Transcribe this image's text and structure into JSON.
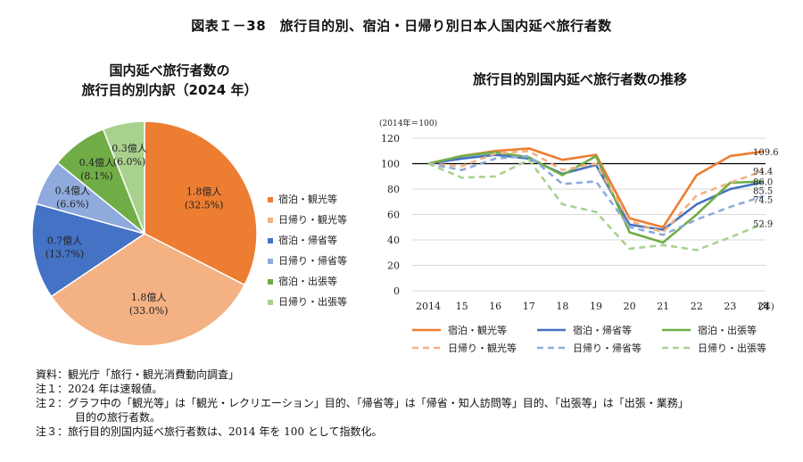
{
  "figure_title": "図表Ｉ－38　旅行目的別、宿泊・日帰り別日本人国内延べ旅行者数",
  "chart_data": [
    {
      "type": "pie",
      "title_lines": [
        "国内延べ旅行者数の",
        "旅行目的別内訳（2024 年）"
      ],
      "slices": [
        {
          "name": "宿泊・観光等",
          "value": 1.8,
          "value_label": "1.8億人",
          "pct_label": "(32.5%)",
          "percent": 32.5,
          "color": "#ED7D31"
        },
        {
          "name": "日帰り・観光等",
          "value": 1.8,
          "value_label": "1.8億人",
          "pct_label": "(33.0%)",
          "percent": 33.0,
          "color": "#F4B183"
        },
        {
          "name": "宿泊・帰省等",
          "value": 0.7,
          "value_label": "0.7億人",
          "pct_label": "(13.7%)",
          "percent": 13.7,
          "color": "#4472C4"
        },
        {
          "name": "日帰り・帰省等",
          "value": 0.4,
          "value_label": "0.4億人",
          "pct_label": "(6.6%)",
          "percent": 6.6,
          "color": "#8FAADC"
        },
        {
          "name": "宿泊・出張等",
          "value": 0.4,
          "value_label": "0.4億人",
          "pct_label": "(8.1%)",
          "percent": 8.1,
          "color": "#70AD47"
        },
        {
          "name": "日帰り・出張等",
          "value": 0.3,
          "value_label": "0.3億人",
          "pct_label": "(6.0%)",
          "percent": 6.0,
          "color": "#A9D18E"
        }
      ],
      "legend_position": "right"
    },
    {
      "type": "line",
      "title": "旅行目的別国内延べ旅行者数の推移",
      "unit_label": "(2014年＝100)",
      "x_unit": "(年)",
      "x": [
        2014,
        2015,
        2016,
        2017,
        2018,
        2019,
        2020,
        2021,
        2022,
        2023,
        2024
      ],
      "x_labels": [
        "2014",
        "15",
        "16",
        "17",
        "18",
        "19",
        "20",
        "21",
        "22",
        "23",
        "24"
      ],
      "ylim": [
        0,
        120
      ],
      "y_ticks": [
        0,
        20,
        40,
        60,
        80,
        100,
        120
      ],
      "reference_line": 100,
      "grid": true,
      "legend_position": "bottom",
      "series": [
        {
          "name": "宿泊・観光等",
          "color": "#ED7D31",
          "dashed": false,
          "end_label": "109.6",
          "values": [
            100,
            106,
            110,
            112,
            103,
            107,
            57,
            50,
            91,
            106,
            109.6
          ]
        },
        {
          "name": "宿泊・帰省等",
          "color": "#4472C4",
          "dashed": false,
          "end_label": "85.5",
          "values": [
            100,
            104,
            107,
            104,
            92,
            99,
            52,
            48,
            68,
            80,
            85.5
          ]
        },
        {
          "name": "宿泊・出張等",
          "color": "#70AD47",
          "dashed": false,
          "end_label": "86.0",
          "values": [
            100,
            106,
            109,
            105,
            91,
            106,
            46,
            38,
            60,
            85,
            86.0
          ]
        },
        {
          "name": "日帰り・観光等",
          "color": "#F4B183",
          "dashed": true,
          "end_label": "94.4",
          "values": [
            100,
            98,
            108,
            110,
            95,
            100,
            55,
            46,
            75,
            85,
            94.4
          ]
        },
        {
          "name": "日帰り・帰省等",
          "color": "#8FAADC",
          "dashed": true,
          "end_label": "74.5",
          "values": [
            100,
            95,
            104,
            106,
            84,
            86,
            50,
            44,
            56,
            66,
            74.5
          ]
        },
        {
          "name": "日帰り・出張等",
          "color": "#A9D18E",
          "dashed": true,
          "end_label": "52.9",
          "values": [
            100,
            89,
            90,
            103,
            68,
            62,
            33,
            36,
            32,
            42,
            52.9
          ]
        }
      ]
    }
  ],
  "notes": [
    "資料：観光庁「旅行・観光消費動向調査」",
    "注１：2024 年は速報値。",
    "注２：グラフ中の「観光等」は「観光・レクリエーション」目的、「帰省等」は「帰省・知人訪問等」目的、「出張等」は「出張・業務」",
    "目的の旅行者数。",
    "注３：旅行目的別国内延べ旅行者数は、2014 年を 100 として指数化。"
  ]
}
